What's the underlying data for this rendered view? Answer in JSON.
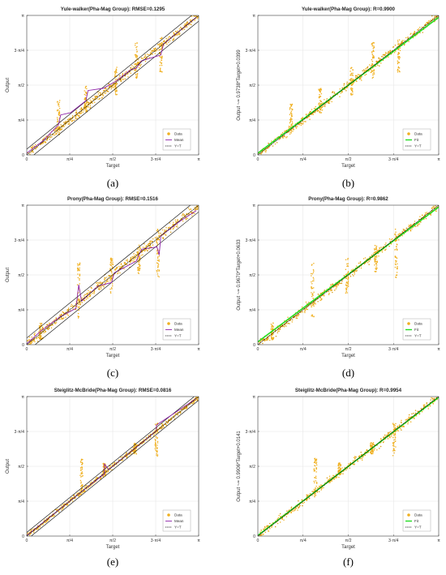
{
  "chart_data": [
    {
      "id": "a",
      "kind": "error",
      "type": "scatter",
      "title": "Yule-walker(Pha-Mag Group): RMSE=0.1295",
      "caption": "(a)",
      "xlabel": "Target",
      "ylabel": "Output",
      "xlim": [
        0,
        3.1416
      ],
      "ylim": [
        0,
        3.1416
      ],
      "grid": true,
      "legend": "bottom-right",
      "band": 0.1295,
      "xticks": [
        "0",
        "π/4",
        "π/2",
        "3·π/4",
        "π"
      ],
      "yticks": [
        "0",
        "π/4",
        "π/2",
        "3·π/4",
        "π"
      ],
      "legend_entries": [
        "Data",
        "Mean",
        "Y=T"
      ],
      "spikes": [
        {
          "x": 0.58,
          "ymin": 0.45,
          "ymax": 1.25
        },
        {
          "x": 1.08,
          "ymin": 0.95,
          "ymax": 1.55
        },
        {
          "x": 1.63,
          "ymin": 1.35,
          "ymax": 2.0
        },
        {
          "x": 2.0,
          "ymin": 1.7,
          "ymax": 2.55
        },
        {
          "x": 2.45,
          "ymin": 1.85,
          "ymax": 2.65
        }
      ],
      "series": [
        {
          "name": "Data",
          "points": [
            [
              0.1,
              0.14
            ],
            [
              0.3,
              0.35
            ],
            [
              0.5,
              0.55
            ],
            [
              0.7,
              0.72
            ],
            [
              0.9,
              0.95
            ],
            [
              1.1,
              1.2
            ],
            [
              1.3,
              1.42
            ],
            [
              1.5,
              1.6
            ],
            [
              1.7,
              1.78
            ],
            [
              1.9,
              1.96
            ],
            [
              2.1,
              2.18
            ],
            [
              2.3,
              2.35
            ],
            [
              2.5,
              2.55
            ],
            [
              2.7,
              2.72
            ],
            [
              2.9,
              2.92
            ],
            [
              3.1,
              3.12
            ]
          ]
        },
        {
          "name": "Mean",
          "points": [
            [
              0,
              0.04
            ],
            [
              0.3,
              0.32
            ],
            [
              0.58,
              0.68
            ],
            [
              0.62,
              0.9
            ],
            [
              0.8,
              0.95
            ],
            [
              1.08,
              1.22
            ],
            [
              1.12,
              1.45
            ],
            [
              1.4,
              1.5
            ],
            [
              1.63,
              1.66
            ],
            [
              1.9,
              1.92
            ],
            [
              2.0,
              1.95
            ],
            [
              2.1,
              2.12
            ],
            [
              2.45,
              2.25
            ],
            [
              2.5,
              2.5
            ],
            [
              2.9,
              2.9
            ],
            [
              3.1,
              3.1
            ]
          ]
        },
        {
          "name": "Y=T",
          "points": [
            [
              0,
              0
            ],
            [
              3.1416,
              3.1416
            ]
          ]
        }
      ]
    },
    {
      "id": "b",
      "kind": "fit",
      "type": "scatter",
      "title": "Yule-walker(Pha-Mag Group): R=0.9900",
      "caption": "(b)",
      "xlabel": "Target",
      "ylabel": "Output ~= 0.9738*Target+0.0399",
      "xlim": [
        0,
        3.1416
      ],
      "ylim": [
        0,
        3.1416
      ],
      "grid": true,
      "legend": "bottom-right",
      "fit": {
        "slope": 0.9738,
        "intercept": 0.0399
      },
      "xticks": [
        "0",
        "π/4",
        "π/2",
        "3·π/4",
        "π"
      ],
      "yticks": [
        "0",
        "π/4",
        "π/2",
        "3·π/4",
        "π"
      ],
      "legend_entries": [
        "Data",
        "Fit",
        "Y=T"
      ],
      "spikes": [
        {
          "x": 0.58,
          "ymin": 0.45,
          "ymax": 1.2
        },
        {
          "x": 1.08,
          "ymin": 0.95,
          "ymax": 1.5
        },
        {
          "x": 1.63,
          "ymin": 1.35,
          "ymax": 2.0
        },
        {
          "x": 2.0,
          "ymin": 1.7,
          "ymax": 2.55
        },
        {
          "x": 2.45,
          "ymin": 1.85,
          "ymax": 2.65
        }
      ],
      "series": [
        {
          "name": "Data",
          "points": [
            [
              0.1,
              0.14
            ],
            [
              0.3,
              0.35
            ],
            [
              0.5,
              0.55
            ],
            [
              0.7,
              0.72
            ],
            [
              0.9,
              0.95
            ],
            [
              1.1,
              1.2
            ],
            [
              1.3,
              1.42
            ],
            [
              1.5,
              1.6
            ],
            [
              1.7,
              1.78
            ],
            [
              1.9,
              1.96
            ],
            [
              2.1,
              2.18
            ],
            [
              2.3,
              2.35
            ],
            [
              2.5,
              2.55
            ],
            [
              2.7,
              2.72
            ],
            [
              2.9,
              2.92
            ],
            [
              3.1,
              3.12
            ]
          ]
        },
        {
          "name": "Fit",
          "points": [
            [
              0,
              0.0399
            ],
            [
              3.1416,
              3.099
            ]
          ]
        },
        {
          "name": "Y=T",
          "points": [
            [
              0,
              0
            ],
            [
              3.1416,
              3.1416
            ]
          ]
        }
      ]
    },
    {
      "id": "c",
      "kind": "error",
      "type": "scatter",
      "title": "Prony(Pha-Mag Group): RMSE=0.1516",
      "caption": "(c)",
      "xlabel": "Target",
      "ylabel": "Output",
      "xlim": [
        0,
        3.1416
      ],
      "ylim": [
        0,
        3.1416
      ],
      "grid": true,
      "legend": "bottom-right",
      "band": 0.1516,
      "xticks": [
        "0",
        "π/4",
        "π/2",
        "3·π/4",
        "π"
      ],
      "yticks": [
        "0",
        "π/4",
        "π/2",
        "3·π/4",
        "π"
      ],
      "legend_entries": [
        "Data",
        "Mean",
        "Y=T"
      ],
      "spikes": [
        {
          "x": 0.25,
          "ymin": 0.1,
          "ymax": 0.5
        },
        {
          "x": 0.95,
          "ymin": 0.6,
          "ymax": 1.85
        },
        {
          "x": 1.55,
          "ymin": 1.15,
          "ymax": 1.95
        },
        {
          "x": 2.05,
          "ymin": 1.6,
          "ymax": 2.25
        },
        {
          "x": 2.4,
          "ymin": 1.5,
          "ymax": 2.6
        }
      ],
      "series": [
        {
          "name": "Data",
          "points": [
            [
              0.1,
              0.12
            ],
            [
              0.3,
              0.3
            ],
            [
              0.5,
              0.52
            ],
            [
              0.7,
              0.7
            ],
            [
              0.9,
              0.92
            ],
            [
              1.1,
              1.15
            ],
            [
              1.3,
              1.35
            ],
            [
              1.5,
              1.55
            ],
            [
              1.7,
              1.72
            ],
            [
              1.9,
              1.92
            ],
            [
              2.1,
              2.12
            ],
            [
              2.3,
              2.32
            ],
            [
              2.5,
              2.5
            ],
            [
              2.7,
              2.7
            ],
            [
              2.9,
              2.9
            ],
            [
              3.1,
              3.05
            ]
          ]
        },
        {
          "name": "Mean",
          "points": [
            [
              0,
              0.02
            ],
            [
              0.25,
              0.3
            ],
            [
              0.6,
              0.62
            ],
            [
              0.9,
              0.82
            ],
            [
              0.95,
              1.35
            ],
            [
              1.0,
              0.98
            ],
            [
              1.3,
              1.32
            ],
            [
              1.55,
              1.4
            ],
            [
              1.6,
              1.62
            ],
            [
              2.0,
              1.88
            ],
            [
              2.1,
              2.15
            ],
            [
              2.38,
              2.2
            ],
            [
              2.42,
              2.02
            ],
            [
              2.45,
              2.45
            ],
            [
              2.8,
              2.78
            ],
            [
              3.1,
              3.02
            ]
          ]
        },
        {
          "name": "Y=T",
          "points": [
            [
              0,
              0
            ],
            [
              3.1416,
              3.1416
            ]
          ]
        }
      ]
    },
    {
      "id": "d",
      "kind": "fit",
      "type": "scatter",
      "title": "Prony(Pha-Mag Group): R=0.9862",
      "caption": "(d)",
      "xlabel": "Target",
      "ylabel": "Output ~= 0.9670*Target+0.0633",
      "xlim": [
        0,
        3.1416
      ],
      "ylim": [
        0,
        3.1416
      ],
      "grid": true,
      "legend": "bottom-right",
      "fit": {
        "slope": 0.967,
        "intercept": 0.0633
      },
      "xticks": [
        "0",
        "π/4",
        "π/2",
        "3·π/4",
        "π"
      ],
      "yticks": [
        "0",
        "π/4",
        "π/2",
        "3·π/4",
        "π"
      ],
      "legend_entries": [
        "Data",
        "Fit",
        "Y=T"
      ],
      "spikes": [
        {
          "x": 0.25,
          "ymin": 0.1,
          "ymax": 0.5
        },
        {
          "x": 0.95,
          "ymin": 0.6,
          "ymax": 1.85
        },
        {
          "x": 1.55,
          "ymin": 1.15,
          "ymax": 1.95
        },
        {
          "x": 2.05,
          "ymin": 1.6,
          "ymax": 2.25
        },
        {
          "x": 2.4,
          "ymin": 1.5,
          "ymax": 2.6
        }
      ],
      "series": [
        {
          "name": "Data",
          "points": [
            [
              0.1,
              0.12
            ],
            [
              0.3,
              0.3
            ],
            [
              0.5,
              0.52
            ],
            [
              0.7,
              0.7
            ],
            [
              0.9,
              0.92
            ],
            [
              1.1,
              1.15
            ],
            [
              1.3,
              1.35
            ],
            [
              1.5,
              1.55
            ],
            [
              1.7,
              1.72
            ],
            [
              1.9,
              1.92
            ],
            [
              2.1,
              2.12
            ],
            [
              2.3,
              2.32
            ],
            [
              2.5,
              2.5
            ],
            [
              2.7,
              2.7
            ],
            [
              2.9,
              2.9
            ],
            [
              3.1,
              3.05
            ]
          ]
        },
        {
          "name": "Fit",
          "points": [
            [
              0,
              0.0633
            ],
            [
              3.1416,
              3.1013
            ]
          ]
        },
        {
          "name": "Y=T",
          "points": [
            [
              0,
              0
            ],
            [
              3.1416,
              3.1416
            ]
          ]
        }
      ]
    },
    {
      "id": "e",
      "kind": "error",
      "type": "scatter",
      "title": "Steiglitz-McBride(Pha-Mag Group): RMSE=0.0816",
      "caption": "(e)",
      "xlabel": "Target",
      "ylabel": "Output",
      "xlim": [
        0,
        3.1416
      ],
      "ylim": [
        0,
        3.1416
      ],
      "grid": true,
      "legend": "bottom-right",
      "band": 0.0816,
      "xticks": [
        "0",
        "π/4",
        "π/2",
        "3·π/4",
        "π"
      ],
      "yticks": [
        "0",
        "π/4",
        "π/2",
        "3·π/4",
        "π"
      ],
      "legend_entries": [
        "Data",
        "Mean",
        "Y=T"
      ],
      "spikes": [
        {
          "x": 1.0,
          "ymin": 0.95,
          "ymax": 1.75
        },
        {
          "x": 1.42,
          "ymin": 1.35,
          "ymax": 1.65
        },
        {
          "x": 1.98,
          "ymin": 1.85,
          "ymax": 2.1
        },
        {
          "x": 2.37,
          "ymin": 1.8,
          "ymax": 2.55
        }
      ],
      "series": [
        {
          "name": "Data",
          "points": [
            [
              0.2,
              0.2
            ],
            [
              0.4,
              0.41
            ],
            [
              0.6,
              0.6
            ],
            [
              0.8,
              0.8
            ],
            [
              1.0,
              1.02
            ],
            [
              1.2,
              1.2
            ],
            [
              1.4,
              1.45
            ],
            [
              1.6,
              1.62
            ],
            [
              1.8,
              1.8
            ],
            [
              2.0,
              2.0
            ],
            [
              2.2,
              2.2
            ],
            [
              2.4,
              2.4
            ],
            [
              2.6,
              2.6
            ],
            [
              2.8,
              2.8
            ],
            [
              3.0,
              3.0
            ]
          ]
        },
        {
          "name": "Mean",
          "points": [
            [
              0,
              0.01
            ],
            [
              1.0,
              1.0
            ],
            [
              1.42,
              1.4
            ],
            [
              1.42,
              1.62
            ],
            [
              1.5,
              1.5
            ],
            [
              2.37,
              2.37
            ],
            [
              2.37,
              2.5
            ],
            [
              3.1,
              3.1
            ]
          ]
        },
        {
          "name": "Y=T",
          "points": [
            [
              0,
              0
            ],
            [
              3.1416,
              3.1416
            ]
          ]
        }
      ]
    },
    {
      "id": "f",
      "kind": "fit",
      "type": "scatter",
      "title": "Steiglitz-McBride(Pha-Mag Group): R=0.9954",
      "caption": "(f)",
      "xlabel": "Target",
      "ylabel": "Output ~= 0.9906*Target+0.0141",
      "xlim": [
        0,
        3.1416
      ],
      "ylim": [
        0,
        3.1416
      ],
      "grid": true,
      "legend": "bottom-right",
      "fit": {
        "slope": 0.9906,
        "intercept": 0.0141
      },
      "xticks": [
        "0",
        "π/4",
        "π/2",
        "3·π/4",
        "π"
      ],
      "yticks": [
        "0",
        "π/4",
        "π/2",
        "3·π/4",
        "π"
      ],
      "legend_entries": [
        "Data",
        "Fit",
        "Y=T"
      ],
      "spikes": [
        {
          "x": 1.0,
          "ymin": 0.95,
          "ymax": 1.75
        },
        {
          "x": 1.42,
          "ymin": 1.35,
          "ymax": 1.65
        },
        {
          "x": 1.98,
          "ymin": 1.85,
          "ymax": 2.1
        },
        {
          "x": 2.37,
          "ymin": 1.8,
          "ymax": 2.55
        }
      ],
      "series": [
        {
          "name": "Data",
          "points": [
            [
              0.2,
              0.2
            ],
            [
              0.4,
              0.41
            ],
            [
              0.6,
              0.6
            ],
            [
              0.8,
              0.8
            ],
            [
              1.0,
              1.02
            ],
            [
              1.2,
              1.2
            ],
            [
              1.4,
              1.45
            ],
            [
              1.6,
              1.62
            ],
            [
              1.8,
              1.8
            ],
            [
              2.0,
              2.0
            ],
            [
              2.2,
              2.2
            ],
            [
              2.4,
              2.4
            ],
            [
              2.6,
              2.6
            ],
            [
              2.8,
              2.8
            ],
            [
              3.0,
              3.0
            ]
          ]
        },
        {
          "name": "Fit",
          "points": [
            [
              0,
              0.0141
            ],
            [
              3.1416,
              3.1262
            ]
          ]
        },
        {
          "name": "Y=T",
          "points": [
            [
              0,
              0
            ],
            [
              3.1416,
              3.1416
            ]
          ]
        }
      ]
    }
  ],
  "colors": {
    "data": "#f0b020",
    "data_dark": "#d99a12",
    "mean": "#8e24aa",
    "fit": "#22dd22",
    "identity": "#000000",
    "band": "#000000",
    "grid": "#e3e3e3",
    "axis": "#444444"
  }
}
